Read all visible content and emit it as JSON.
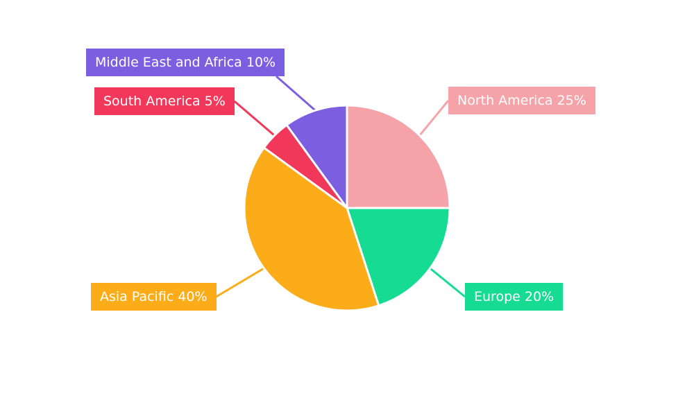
{
  "chart_data": {
    "type": "pie",
    "title": "",
    "categories": [
      "North America",
      "Europe",
      "Asia Pacific",
      "South America",
      "Middle East and Africa"
    ],
    "values": [
      25,
      20,
      40,
      5,
      10
    ],
    "unit": "%",
    "colors": [
      "#F5A3A8",
      "#16DB93",
      "#FBAC18",
      "#F2385A",
      "#7C5FE0"
    ],
    "labels": [
      "North America 25%",
      "Europe 20%",
      "Asia Pacific 40%",
      "South America 5%",
      "Middle East and Africa 10%"
    ],
    "start_angle_deg": 0,
    "direction": "clockwise",
    "legend_position": "none",
    "background_color": "#ffffff",
    "label_text_color": "#ffffff"
  }
}
